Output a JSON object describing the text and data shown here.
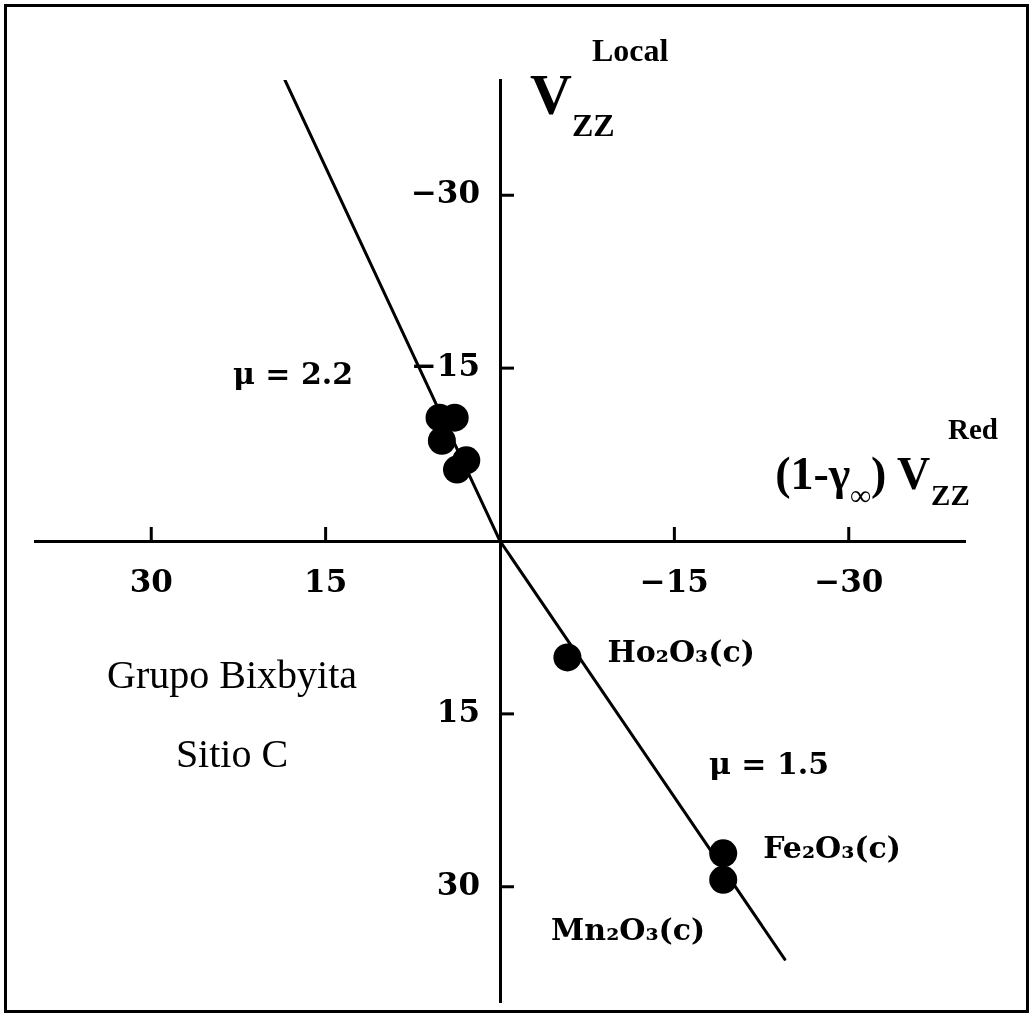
{
  "chart_data": {
    "type": "scatter",
    "xlabel": "(1-γ$_{∞}$) V$_{ZZ}$$^{Red}$",
    "ylabel": "V$_{ZZ}$$^{Local}$",
    "xlim": [
      40,
      -40
    ],
    "ylim": [
      40,
      -40
    ],
    "xticks": [
      30,
      15,
      {
        "value": -15,
        "label": "−15"
      },
      {
        "value": -30,
        "label": "−30"
      }
    ],
    "yticks": [
      {
        "value": -30,
        "label": "−30"
      },
      {
        "value": -15,
        "label": "−15"
      },
      15,
      30
    ],
    "marker": "circle",
    "annotations": [
      "μ = 2.2",
      "μ = 1.5",
      "Grupo Bixbyita",
      "Sitio C"
    ],
    "series": [
      {
        "color": "#000000",
        "x": [
          5.2,
          3.9,
          5.0,
          2.9,
          3.7
        ],
        "values": [
          -10.7,
          -10.7,
          -8.7,
          -7.0,
          -6.2
        ]
      },
      {
        "name": "Ho₂O₃(c)",
        "color": "#000000",
        "x": [
          -5.8
        ],
        "values": [
          10.1
        ]
      },
      {
        "name": "Fe₂O₃(c)",
        "color": "#000000",
        "x": [
          -19.2
        ],
        "values": [
          27.1
        ]
      },
      {
        "name": "Mn₂O₃(c)",
        "color": "#000000",
        "x": [
          -19.2
        ],
        "values": [
          29.4
        ]
      },
      {
        "type": "line",
        "color": "#000000",
        "marker": "none",
        "x": [
          18.5,
          0,
          -24.5
        ],
        "values": [
          -40,
          0,
          36.3
        ]
      }
    ]
  }
}
